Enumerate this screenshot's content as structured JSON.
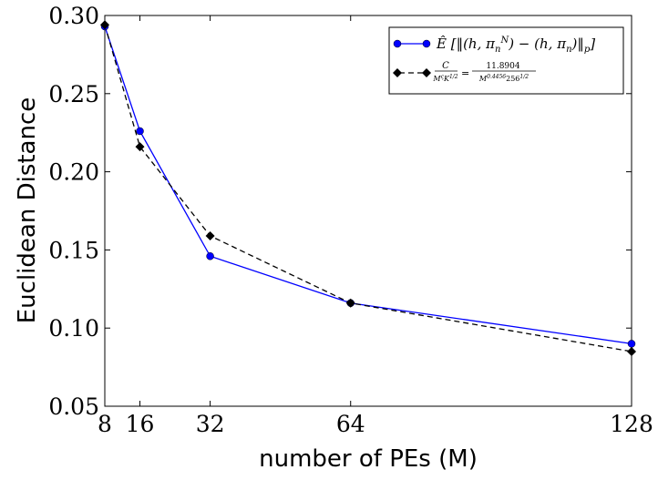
{
  "chart_data": {
    "type": "line",
    "xlabel": "number of PEs (M)",
    "ylabel": "Euclidean Distance",
    "xlim": [
      8,
      128
    ],
    "ylim": [
      0.05,
      0.3
    ],
    "xticks": [
      8,
      16,
      32,
      64,
      128
    ],
    "xtick_labels": [
      "8",
      "16",
      "32",
      "64",
      "128"
    ],
    "yticks": [
      0.05,
      0.1,
      0.15,
      0.2,
      0.25,
      0.3
    ],
    "ytick_labels": [
      "0.05",
      "0.10",
      "0.15",
      "0.20",
      "0.25",
      "0.30"
    ],
    "grid": false,
    "legend_position": "top-right",
    "x": [
      8,
      16,
      32,
      64,
      128
    ],
    "series": [
      {
        "name": "Ê [‖(h, π_n^N) − (h, π_n)‖_p]",
        "values": [
          0.293,
          0.226,
          0.146,
          0.116,
          0.09
        ],
        "color": "#0000ff",
        "linestyle": "solid",
        "marker": "circle"
      },
      {
        "name": "C / (M^ς K^{1/2}) = 11.8904 / (M^{0.4456} 256^{1/2})",
        "values": [
          0.294,
          0.216,
          0.159,
          0.116,
          0.085
        ],
        "color": "#000000",
        "linestyle": "dashed",
        "marker": "diamond"
      }
    ]
  }
}
